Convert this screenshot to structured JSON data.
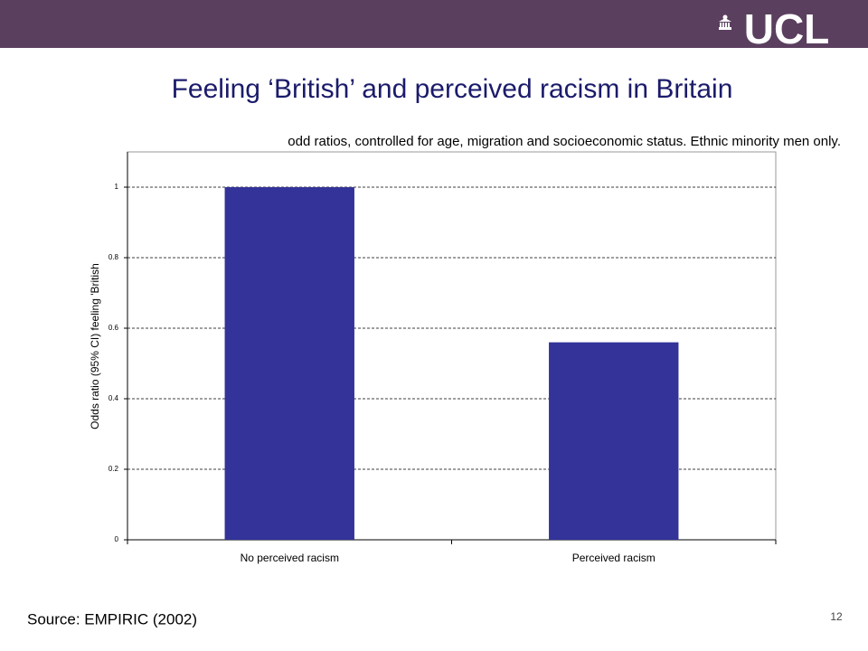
{
  "header": {
    "logo": "UCL"
  },
  "chart_data": {
    "type": "bar",
    "title": "Feeling ‘British’ and perceived racism in Britain",
    "subtitle": "odd ratios, controlled for age, migration and socioeconomic status. Ethnic minority men only.",
    "y_label": "Odds ratio (95% CI) feeling 'British",
    "categories": [
      "No perceived racism",
      "Perceived racism"
    ],
    "values": [
      1,
      0.56
    ],
    "color": "#333399",
    "ylim": [
      0,
      1.1
    ],
    "yticks": [
      0,
      0.2,
      0.4,
      0.6,
      0.8,
      1
    ],
    "grid": true
  },
  "footer": {
    "source": "Source: EMPIRIC (2002)",
    "page_number": "12"
  }
}
